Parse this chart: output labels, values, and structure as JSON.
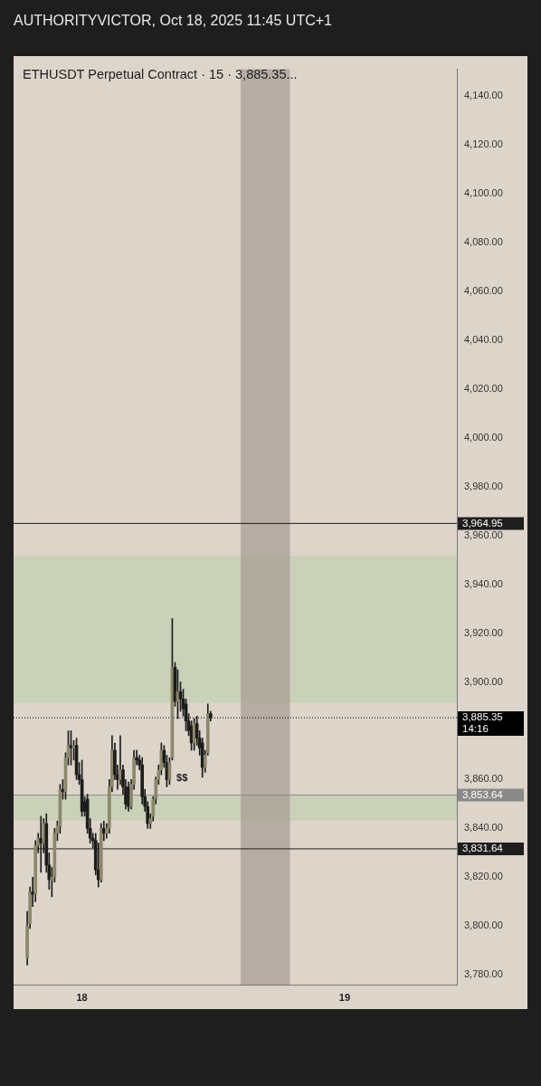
{
  "chart_data": {
    "type": "candlestick",
    "title": "ETHUSDT Perpetual Contract · 15 · 3,885.35...",
    "subtitle": "AUTHORITYVICTOR, Oct 18, 2025 11:45 UTC+1",
    "x": [
      "2025-10-17T19:00",
      "2025-10-17T19:15",
      "2025-10-17T19:30",
      "2025-10-17T19:45",
      "2025-10-17T20:00",
      "2025-10-17T20:15",
      "2025-10-17T20:30",
      "2025-10-17T20:45",
      "2025-10-17T21:00",
      "2025-10-17T21:15",
      "2025-10-17T21:30",
      "2025-10-17T21:45",
      "2025-10-17T22:00",
      "2025-10-17T22:15",
      "2025-10-17T22:30",
      "2025-10-17T22:45",
      "2025-10-17T23:00",
      "2025-10-17T23:15",
      "2025-10-17T23:30",
      "2025-10-17T23:45",
      "2025-10-18T00:00",
      "2025-10-18T00:15",
      "2025-10-18T00:30",
      "2025-10-18T00:45",
      "2025-10-18T01:00",
      "2025-10-18T01:15",
      "2025-10-18T01:30",
      "2025-10-18T01:45",
      "2025-10-18T02:00",
      "2025-10-18T02:15",
      "2025-10-18T02:30",
      "2025-10-18T02:45",
      "2025-10-18T03:00",
      "2025-10-18T03:15",
      "2025-10-18T03:30",
      "2025-10-18T03:45",
      "2025-10-18T04:00",
      "2025-10-18T04:15",
      "2025-10-18T04:30",
      "2025-10-18T04:45",
      "2025-10-18T05:00",
      "2025-10-18T05:15",
      "2025-10-18T05:30",
      "2025-10-18T05:45",
      "2025-10-18T06:00",
      "2025-10-18T06:15",
      "2025-10-18T06:30",
      "2025-10-18T06:45",
      "2025-10-18T07:00",
      "2025-10-18T07:15",
      "2025-10-18T07:30",
      "2025-10-18T07:45",
      "2025-10-18T08:00",
      "2025-10-18T08:15",
      "2025-10-18T08:30",
      "2025-10-18T08:45",
      "2025-10-18T09:00",
      "2025-10-18T09:15",
      "2025-10-18T09:30",
      "2025-10-18T09:45",
      "2025-10-18T10:00",
      "2025-10-18T10:15",
      "2025-10-18T10:30",
      "2025-10-18T10:45",
      "2025-10-18T11:00",
      "2025-10-18T11:15",
      "2025-10-18T11:30",
      "2025-10-18T11:45"
    ],
    "ohlc": [
      [
        3787,
        3806,
        3784,
        3800
      ],
      [
        3801,
        3816,
        3799,
        3814
      ],
      [
        3814,
        3820,
        3808,
        3813
      ],
      [
        3813,
        3835,
        3810,
        3833
      ],
      [
        3833,
        3838,
        3830,
        3836
      ],
      [
        3836,
        3845,
        3822,
        3834
      ],
      [
        3834,
        3844,
        3830,
        3842
      ],
      [
        3842,
        3846,
        3822,
        3825
      ],
      [
        3825,
        3830,
        3815,
        3819
      ],
      [
        3819,
        3824,
        3812,
        3820
      ],
      [
        3820,
        3840,
        3818,
        3838
      ],
      [
        3838,
        3843,
        3835,
        3841
      ],
      [
        3841,
        3858,
        3838,
        3856
      ],
      [
        3856,
        3860,
        3852,
        3855
      ],
      [
        3855,
        3871,
        3852,
        3869
      ],
      [
        3869,
        3880,
        3866,
        3874
      ],
      [
        3874,
        3880,
        3866,
        3873
      ],
      [
        3873,
        3876,
        3868,
        3874
      ],
      [
        3874,
        3877,
        3860,
        3862
      ],
      [
        3862,
        3867,
        3858,
        3860
      ],
      [
        3860,
        3868,
        3845,
        3847
      ],
      [
        3851,
        3853,
        3845,
        3847
      ],
      [
        3852,
        3854,
        3838,
        3840
      ],
      [
        3840,
        3844,
        3834,
        3836
      ],
      [
        3836,
        3838,
        3832,
        3835
      ],
      [
        3835,
        3838,
        3821,
        3823
      ],
      [
        3823,
        3834,
        3816,
        3819
      ],
      [
        3819,
        3842,
        3818,
        3840
      ],
      [
        3840,
        3843,
        3835,
        3838
      ],
      [
        3838,
        3842,
        3836,
        3840
      ],
      [
        3840,
        3860,
        3838,
        3857
      ],
      [
        3857,
        3878,
        3855,
        3872
      ],
      [
        3872,
        3875,
        3860,
        3862
      ],
      [
        3862,
        3866,
        3856,
        3860
      ],
      [
        3860,
        3878,
        3858,
        3864
      ],
      [
        3864,
        3866,
        3854,
        3857
      ],
      [
        3857,
        3860,
        3848,
        3850
      ],
      [
        3857,
        3859,
        3847,
        3849
      ],
      [
        3849,
        3860,
        3848,
        3858
      ],
      [
        3858,
        3872,
        3856,
        3869
      ],
      [
        3869,
        3872,
        3866,
        3868
      ],
      [
        3868,
        3870,
        3864,
        3866
      ],
      [
        3866,
        3869,
        3850,
        3853
      ],
      [
        3853,
        3856,
        3847,
        3849
      ],
      [
        3849,
        3851,
        3840,
        3842
      ],
      [
        3842,
        3846,
        3840,
        3844
      ],
      [
        3845,
        3853,
        3843,
        3852
      ],
      [
        3852,
        3861,
        3850,
        3860
      ],
      [
        3860,
        3866,
        3858,
        3864
      ],
      [
        3864,
        3875,
        3862,
        3872
      ],
      [
        3872,
        3874,
        3865,
        3867
      ],
      [
        3867,
        3870,
        3857,
        3860
      ],
      [
        3860,
        3869,
        3858,
        3867
      ],
      [
        3869,
        3926,
        3868,
        3906
      ],
      [
        3906,
        3908,
        3890,
        3892
      ],
      [
        3892,
        3905,
        3885,
        3896
      ],
      [
        3896,
        3900,
        3888,
        3893
      ],
      [
        3893,
        3897,
        3886,
        3889
      ],
      [
        3891,
        3893,
        3880,
        3884
      ],
      [
        3884,
        3887,
        3878,
        3880
      ],
      [
        3882,
        3884,
        3872,
        3875
      ],
      [
        3875,
        3885,
        3872,
        3883
      ],
      [
        3883,
        3886,
        3874,
        3877
      ],
      [
        3877,
        3880,
        3870,
        3873
      ],
      [
        3875,
        3877,
        3861,
        3865
      ],
      [
        3865,
        3872,
        3863,
        3870
      ],
      [
        3871,
        3891,
        3870,
        3887
      ],
      [
        3887,
        3888,
        3884,
        3885.35
      ]
    ],
    "colors": [
      "#8c8769",
      "#8c8769",
      "#1c1c1c",
      "#8c8769",
      "#8c8769",
      "#1c1c1c",
      "#8c8769",
      "#1c1c1c",
      "#1c1c1c",
      "#8c8769",
      "#8c8769",
      "#8c8769",
      "#8c8769",
      "#1c1c1c",
      "#8c8769",
      "#8c8769",
      "#1c1c1c",
      "#8c8769",
      "#1c1c1c",
      "#1c1c1c",
      "#1c1c1c",
      "#1c1c1c",
      "#1c1c1c",
      "#1c1c1c",
      "#1c1c1c",
      "#1c1c1c",
      "#1c1c1c",
      "#8c8769",
      "#1c1c1c",
      "#8c8769",
      "#8c8769",
      "#8c8769",
      "#1c1c1c",
      "#1c1c1c",
      "#8c8769",
      "#1c1c1c",
      "#1c1c1c",
      "#1c1c1c",
      "#8c8769",
      "#8c8769",
      "#1c1c1c",
      "#1c1c1c",
      "#1c1c1c",
      "#1c1c1c",
      "#1c1c1c",
      "#8c8769",
      "#8c8769",
      "#8c8769",
      "#8c8769",
      "#8c8769",
      "#1c1c1c",
      "#1c1c1c",
      "#8c8769",
      "#8c8769",
      "#1c1c1c",
      "#8c8769",
      "#1c1c1c",
      "#1c1c1c",
      "#1c1c1c",
      "#1c1c1c",
      "#1c1c1c",
      "#8c8769",
      "#1c1c1c",
      "#1c1c1c",
      "#1c1c1c",
      "#8c8769",
      "#8c8769",
      "#1c1c1c"
    ],
    "xlim": [
      "2025-10-17T17:45",
      "2025-10-19T10:15"
    ],
    "xticks": [
      {
        "value": "2025-10-18",
        "label": "18"
      },
      {
        "value": "2025-10-19",
        "label": "19"
      }
    ],
    "ylim": [
      3776,
      4151
    ],
    "yticks": [
      {
        "value": 3780,
        "label": "3,780.00"
      },
      {
        "value": 3800,
        "label": "3,800.00"
      },
      {
        "value": 3820,
        "label": "3,820.00"
      },
      {
        "value": 3840,
        "label": "3,840.00"
      },
      {
        "value": 3860,
        "label": "3,860.00"
      },
      {
        "value": 3900,
        "label": "3,900.00"
      },
      {
        "value": 3920,
        "label": "3,920.00"
      },
      {
        "value": 3940,
        "label": "3,940.00"
      },
      {
        "value": 3960,
        "label": "3,960.00"
      },
      {
        "value": 3980,
        "label": "3,980.00"
      },
      {
        "value": 4000,
        "label": "4,000.00"
      },
      {
        "value": 4020,
        "label": "4,020.00"
      },
      {
        "value": 4040,
        "label": "4,040.00"
      },
      {
        "value": 4060,
        "label": "4,060.00"
      },
      {
        "value": 4080,
        "label": "4,080.00"
      },
      {
        "value": 4100,
        "label": "4,100.00"
      },
      {
        "value": 4120,
        "label": "4,120.00"
      },
      {
        "value": 4140,
        "label": "4,140.00"
      }
    ],
    "bands": [
      {
        "axis": "y",
        "from": 3891.4,
        "to": 3951.7,
        "color": "#c9d1b8"
      },
      {
        "axis": "y",
        "from": 3843.2,
        "to": 3853.64,
        "color": "#c9d1b8"
      },
      {
        "axis": "x",
        "from": "2025-10-18T14:30",
        "to": "2025-10-18T19:00",
        "color": "#a89e96"
      }
    ],
    "ref_lines": [
      {
        "axis": "y",
        "value": 3885.35,
        "label": "3,885.35 14:16",
        "color": "#000000",
        "line_style": "dotted"
      },
      {
        "axis": "y",
        "value": 3964.95,
        "label": "3,964.95",
        "color": "#1e1e1e",
        "line_style": "solid"
      },
      {
        "axis": "y",
        "value": 3853.64,
        "label": "3,853.64",
        "color": "#8a8a8a",
        "line_style": "solid"
      },
      {
        "axis": "y",
        "value": 3831.64,
        "label": "3,831.64",
        "color": "#1e1e1e",
        "line_style": "solid"
      }
    ],
    "annotations": [
      "$$"
    ],
    "grid": false,
    "legend": false
  }
}
